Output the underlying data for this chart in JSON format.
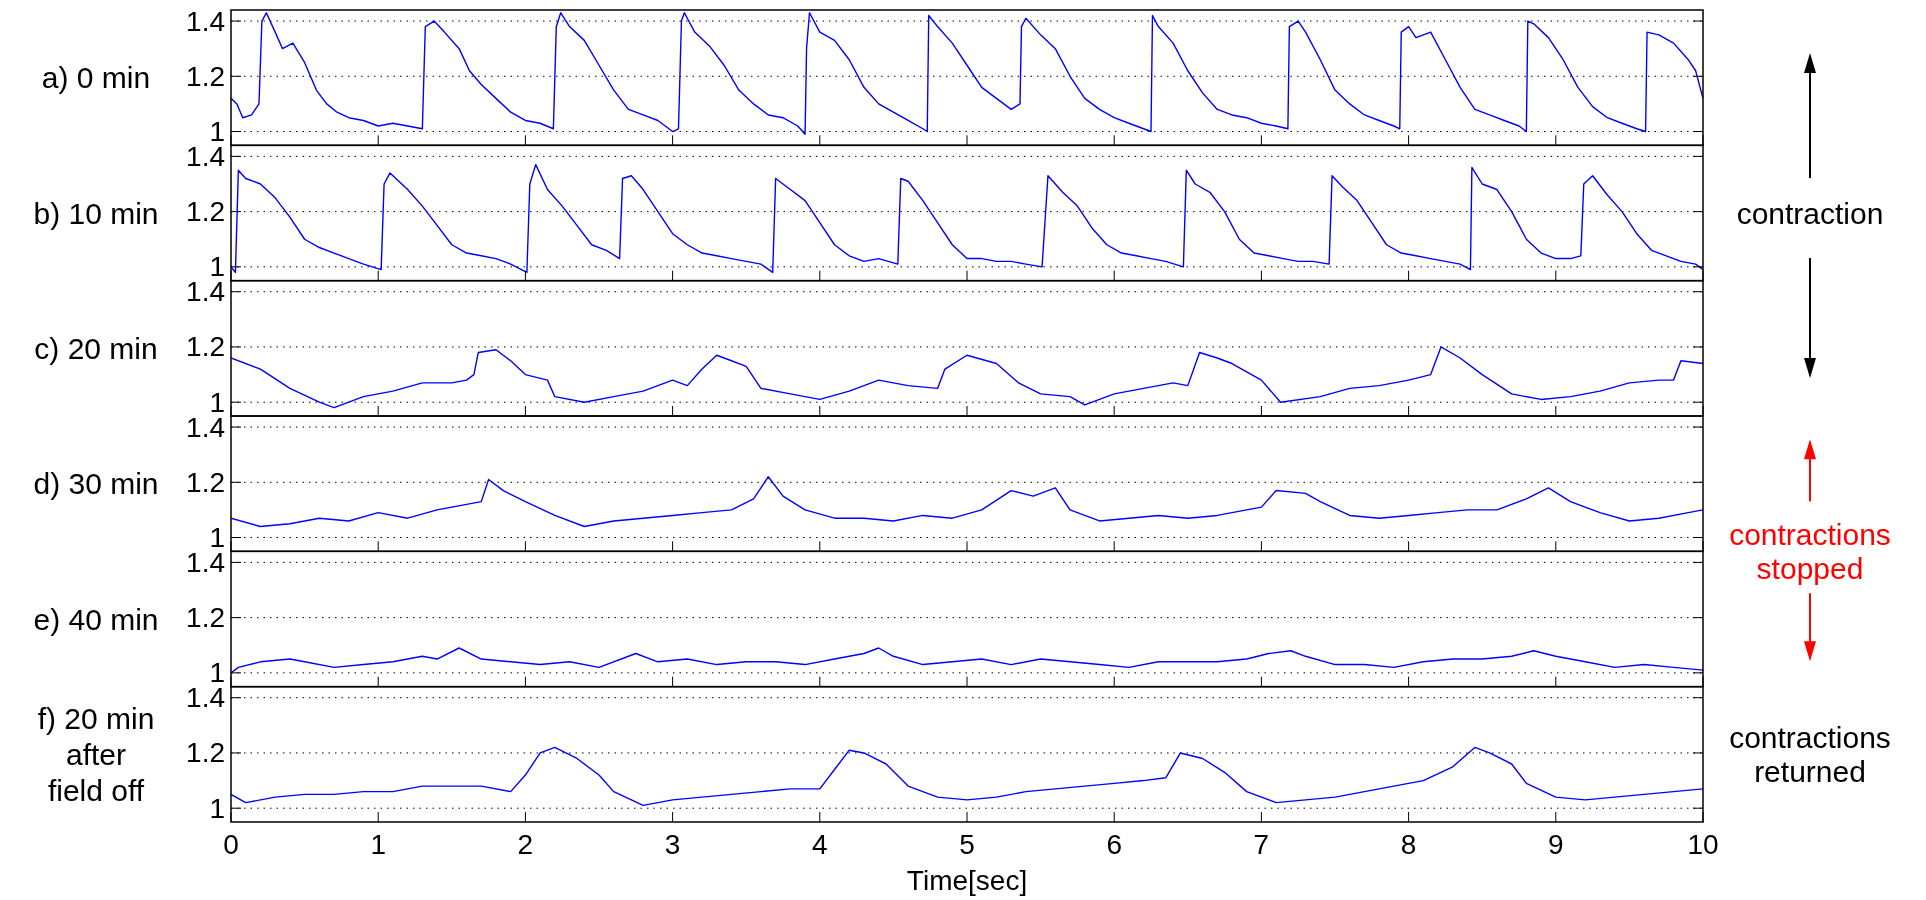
{
  "chart_data": [
    {
      "type": "line",
      "ylabel": "a) 0 min",
      "xlim": [
        0,
        10
      ],
      "xticks": [
        0,
        1,
        2,
        3,
        4,
        5,
        6,
        7,
        8,
        9,
        10
      ],
      "ylim": [
        0.95,
        1.44
      ],
      "yticks": [
        1,
        1.2,
        1.4
      ],
      "grid": "y",
      "tick_labels": "y",
      "x": [
        0,
        0.04,
        0.08,
        0.14,
        0.19,
        0.21,
        0.24,
        0.3,
        0.35,
        0.42,
        0.5,
        0.58,
        0.65,
        0.72,
        0.8,
        0.9,
        1.0,
        1.1,
        1.2,
        1.3,
        1.32,
        1.38,
        1.45,
        1.55,
        1.62,
        1.7,
        1.8,
        1.9,
        2.0,
        2.1,
        2.19,
        2.21,
        2.24,
        2.3,
        2.4,
        2.5,
        2.6,
        2.7,
        2.8,
        2.9,
        3.0,
        3.04,
        3.06,
        3.08,
        3.15,
        3.25,
        3.35,
        3.45,
        3.55,
        3.65,
        3.75,
        3.85,
        3.9,
        3.91,
        3.93,
        4.0,
        4.1,
        4.2,
        4.3,
        4.4,
        4.5,
        4.6,
        4.7,
        4.73,
        4.74,
        4.8,
        4.9,
        5.0,
        5.1,
        5.2,
        5.3,
        5.36,
        5.37,
        5.4,
        5.5,
        5.6,
        5.7,
        5.8,
        5.9,
        6.0,
        6.1,
        6.2,
        6.25,
        6.26,
        6.3,
        6.4,
        6.5,
        6.6,
        6.7,
        6.8,
        6.9,
        7.0,
        7.1,
        7.18,
        7.19,
        7.25,
        7.3,
        7.4,
        7.5,
        7.6,
        7.7,
        7.8,
        7.9,
        7.94,
        7.95,
        8.0,
        8.05,
        8.15,
        8.25,
        8.35,
        8.45,
        8.55,
        8.65,
        8.75,
        8.8,
        8.81,
        8.85,
        8.95,
        9.05,
        9.15,
        9.25,
        9.35,
        9.45,
        9.55,
        9.61,
        9.62,
        9.7,
        9.8,
        9.9,
        9.95,
        10
      ],
      "series": [
        {
          "color": "#0000ff",
          "values": [
            1.12,
            1.1,
            1.05,
            1.06,
            1.1,
            1.4,
            1.43,
            1.36,
            1.3,
            1.32,
            1.25,
            1.15,
            1.1,
            1.07,
            1.05,
            1.04,
            1.02,
            1.03,
            1.02,
            1.01,
            1.38,
            1.4,
            1.36,
            1.3,
            1.22,
            1.17,
            1.12,
            1.07,
            1.04,
            1.03,
            1.01,
            1.38,
            1.43,
            1.38,
            1.33,
            1.24,
            1.15,
            1.08,
            1.06,
            1.04,
            1.0,
            1.01,
            1.4,
            1.43,
            1.36,
            1.31,
            1.24,
            1.15,
            1.1,
            1.06,
            1.05,
            1.02,
            0.99,
            1.3,
            1.43,
            1.36,
            1.33,
            1.26,
            1.16,
            1.1,
            1.07,
            1.04,
            1.01,
            1.0,
            1.42,
            1.38,
            1.32,
            1.24,
            1.16,
            1.12,
            1.08,
            1.1,
            1.38,
            1.41,
            1.35,
            1.3,
            1.2,
            1.12,
            1.08,
            1.05,
            1.03,
            1.01,
            1.0,
            1.42,
            1.38,
            1.32,
            1.22,
            1.14,
            1.08,
            1.06,
            1.05,
            1.03,
            1.02,
            1.01,
            1.38,
            1.4,
            1.36,
            1.26,
            1.15,
            1.1,
            1.06,
            1.04,
            1.02,
            1.01,
            1.36,
            1.38,
            1.34,
            1.36,
            1.26,
            1.16,
            1.08,
            1.06,
            1.04,
            1.02,
            1.0,
            1.4,
            1.39,
            1.34,
            1.26,
            1.16,
            1.09,
            1.05,
            1.03,
            1.01,
            1.0,
            1.36,
            1.35,
            1.32,
            1.26,
            1.22,
            1.12
          ]
        }
      ]
    },
    {
      "type": "line",
      "ylabel": "b) 10 min",
      "xlim": [
        0,
        10
      ],
      "xticks": [
        0,
        1,
        2,
        3,
        4,
        5,
        6,
        7,
        8,
        9,
        10
      ],
      "ylim": [
        0.95,
        1.44
      ],
      "yticks": [
        1,
        1.2,
        1.4
      ],
      "grid": "y",
      "tick_labels": "y",
      "annotations": [
        "contraction"
      ],
      "x": [
        0,
        0.03,
        0.05,
        0.1,
        0.2,
        0.3,
        0.4,
        0.5,
        0.6,
        0.7,
        0.8,
        0.9,
        1.02,
        1.04,
        1.08,
        1.2,
        1.3,
        1.4,
        1.5,
        1.6,
        1.7,
        1.8,
        1.9,
        2.01,
        2.03,
        2.07,
        2.15,
        2.25,
        2.35,
        2.45,
        2.55,
        2.64,
        2.66,
        2.72,
        2.8,
        2.9,
        3.0,
        3.1,
        3.2,
        3.3,
        3.4,
        3.5,
        3.6,
        3.68,
        3.7,
        3.8,
        3.9,
        4.0,
        4.1,
        4.2,
        4.3,
        4.4,
        4.53,
        4.55,
        4.6,
        4.7,
        4.8,
        4.9,
        5.0,
        5.1,
        5.2,
        5.3,
        5.4,
        5.51,
        5.55,
        5.65,
        5.75,
        5.85,
        5.95,
        6.05,
        6.15,
        6.25,
        6.35,
        6.47,
        6.49,
        6.55,
        6.65,
        6.75,
        6.85,
        6.95,
        7.05,
        7.15,
        7.25,
        7.35,
        7.46,
        7.48,
        7.55,
        7.65,
        7.75,
        7.85,
        7.95,
        8.05,
        8.15,
        8.25,
        8.35,
        8.42,
        8.43,
        8.5,
        8.6,
        8.7,
        8.8,
        8.9,
        9.0,
        9.1,
        9.17,
        9.19,
        9.25,
        9.35,
        9.45,
        9.55,
        9.65,
        9.75,
        9.85,
        9.95,
        10
      ],
      "series": [
        {
          "color": "#0000ff",
          "values": [
            1.0,
            0.98,
            1.35,
            1.32,
            1.3,
            1.25,
            1.18,
            1.1,
            1.07,
            1.05,
            1.03,
            1.01,
            0.99,
            1.3,
            1.34,
            1.28,
            1.22,
            1.15,
            1.08,
            1.05,
            1.04,
            1.03,
            1.01,
            0.98,
            1.3,
            1.37,
            1.28,
            1.22,
            1.15,
            1.08,
            1.06,
            1.03,
            1.32,
            1.33,
            1.28,
            1.2,
            1.12,
            1.08,
            1.05,
            1.04,
            1.03,
            1.02,
            1.01,
            0.98,
            1.32,
            1.28,
            1.24,
            1.16,
            1.08,
            1.04,
            1.02,
            1.03,
            1.01,
            1.32,
            1.31,
            1.24,
            1.16,
            1.08,
            1.03,
            1.03,
            1.02,
            1.02,
            1.01,
            1.0,
            1.33,
            1.27,
            1.22,
            1.14,
            1.08,
            1.05,
            1.04,
            1.03,
            1.02,
            1.0,
            1.35,
            1.3,
            1.27,
            1.2,
            1.1,
            1.05,
            1.04,
            1.03,
            1.02,
            1.02,
            1.01,
            1.33,
            1.29,
            1.24,
            1.16,
            1.08,
            1.05,
            1.04,
            1.03,
            1.02,
            1.01,
            0.99,
            1.36,
            1.3,
            1.28,
            1.2,
            1.1,
            1.05,
            1.03,
            1.03,
            1.04,
            1.3,
            1.33,
            1.26,
            1.2,
            1.12,
            1.06,
            1.04,
            1.02,
            1.01,
            0.99
          ]
        }
      ]
    },
    {
      "type": "line",
      "ylabel": "c) 20 min",
      "xlim": [
        0,
        10
      ],
      "xticks": [
        0,
        1,
        2,
        3,
        4,
        5,
        6,
        7,
        8,
        9,
        10
      ],
      "ylim": [
        0.95,
        1.44
      ],
      "yticks": [
        1,
        1.2,
        1.4
      ],
      "grid": "y",
      "tick_labels": "y",
      "x": [
        0,
        0.2,
        0.4,
        0.6,
        0.7,
        0.9,
        1.1,
        1.3,
        1.5,
        1.6,
        1.65,
        1.68,
        1.8,
        1.9,
        2.0,
        2.15,
        2.2,
        2.4,
        2.6,
        2.8,
        3.0,
        3.1,
        3.2,
        3.3,
        3.4,
        3.5,
        3.6,
        3.8,
        4.0,
        4.2,
        4.4,
        4.6,
        4.8,
        4.85,
        5.0,
        5.2,
        5.35,
        5.5,
        5.7,
        5.8,
        6.0,
        6.2,
        6.4,
        6.5,
        6.58,
        6.7,
        6.8,
        7.0,
        7.13,
        7.4,
        7.6,
        7.8,
        8.0,
        8.15,
        8.22,
        8.35,
        8.5,
        8.7,
        8.9,
        9.1,
        9.3,
        9.5,
        9.7,
        9.8,
        9.85,
        10
      ],
      "series": [
        {
          "color": "#0000ff",
          "values": [
            1.16,
            1.12,
            1.05,
            1.0,
            0.98,
            1.02,
            1.04,
            1.07,
            1.07,
            1.08,
            1.1,
            1.18,
            1.19,
            1.15,
            1.1,
            1.08,
            1.02,
            1.0,
            1.02,
            1.04,
            1.08,
            1.06,
            1.12,
            1.17,
            1.15,
            1.13,
            1.05,
            1.03,
            1.01,
            1.04,
            1.08,
            1.06,
            1.05,
            1.12,
            1.17,
            1.14,
            1.07,
            1.03,
            1.02,
            0.99,
            1.03,
            1.05,
            1.07,
            1.06,
            1.18,
            1.16,
            1.14,
            1.08,
            1.0,
            1.02,
            1.05,
            1.06,
            1.08,
            1.1,
            1.2,
            1.16,
            1.1,
            1.03,
            1.01,
            1.02,
            1.04,
            1.07,
            1.08,
            1.08,
            1.15,
            1.14
          ]
        }
      ]
    },
    {
      "type": "line",
      "ylabel": "d) 30 min",
      "xlim": [
        0,
        10
      ],
      "xticks": [
        0,
        1,
        2,
        3,
        4,
        5,
        6,
        7,
        8,
        9,
        10
      ],
      "ylim": [
        0.95,
        1.44
      ],
      "yticks": [
        1,
        1.2,
        1.4
      ],
      "grid": "y",
      "tick_labels": "y",
      "annotations": [
        "contractions stopped"
      ],
      "x": [
        0,
        0.2,
        0.4,
        0.6,
        0.8,
        1.0,
        1.2,
        1.4,
        1.6,
        1.7,
        1.75,
        1.85,
        2.0,
        2.2,
        2.4,
        2.6,
        2.8,
        3.0,
        3.2,
        3.4,
        3.55,
        3.65,
        3.75,
        3.9,
        4.1,
        4.3,
        4.5,
        4.7,
        4.9,
        5.1,
        5.3,
        5.45,
        5.6,
        5.7,
        5.9,
        6.1,
        6.3,
        6.5,
        6.7,
        6.9,
        7.0,
        7.1,
        7.3,
        7.4,
        7.6,
        7.8,
        8.0,
        8.2,
        8.4,
        8.6,
        8.8,
        8.95,
        9.1,
        9.3,
        9.5,
        9.7,
        9.9,
        10
      ],
      "series": [
        {
          "color": "#0000ff",
          "values": [
            1.07,
            1.04,
            1.05,
            1.07,
            1.06,
            1.09,
            1.07,
            1.1,
            1.12,
            1.13,
            1.21,
            1.17,
            1.13,
            1.08,
            1.04,
            1.06,
            1.07,
            1.08,
            1.09,
            1.1,
            1.14,
            1.22,
            1.15,
            1.1,
            1.07,
            1.07,
            1.06,
            1.08,
            1.07,
            1.1,
            1.17,
            1.15,
            1.18,
            1.1,
            1.06,
            1.07,
            1.08,
            1.07,
            1.08,
            1.1,
            1.11,
            1.17,
            1.16,
            1.13,
            1.08,
            1.07,
            1.08,
            1.09,
            1.1,
            1.1,
            1.14,
            1.18,
            1.13,
            1.09,
            1.06,
            1.07,
            1.09,
            1.1
          ]
        }
      ]
    },
    {
      "type": "line",
      "ylabel": "e) 40 min",
      "xlim": [
        0,
        10
      ],
      "xticks": [
        0,
        1,
        2,
        3,
        4,
        5,
        6,
        7,
        8,
        9,
        10
      ],
      "ylim": [
        0.95,
        1.44
      ],
      "yticks": [
        1,
        1.2,
        1.4
      ],
      "grid": "y",
      "tick_labels": "y",
      "x": [
        0,
        0.05,
        0.2,
        0.4,
        0.5,
        0.7,
        0.9,
        1.1,
        1.3,
        1.4,
        1.55,
        1.7,
        1.9,
        2.1,
        2.3,
        2.5,
        2.75,
        2.9,
        3.1,
        3.3,
        3.5,
        3.7,
        3.9,
        4.1,
        4.3,
        4.4,
        4.5,
        4.7,
        4.9,
        5.1,
        5.3,
        5.5,
        5.7,
        5.9,
        6.1,
        6.3,
        6.5,
        6.7,
        6.9,
        7.05,
        7.2,
        7.3,
        7.5,
        7.7,
        7.9,
        8.1,
        8.3,
        8.5,
        8.7,
        8.85,
        9.0,
        9.2,
        9.4,
        9.6,
        9.8,
        10
      ],
      "series": [
        {
          "color": "#0000ff",
          "values": [
            1.0,
            1.02,
            1.04,
            1.05,
            1.04,
            1.02,
            1.03,
            1.04,
            1.06,
            1.05,
            1.09,
            1.05,
            1.04,
            1.03,
            1.04,
            1.02,
            1.07,
            1.04,
            1.05,
            1.03,
            1.04,
            1.04,
            1.03,
            1.05,
            1.07,
            1.09,
            1.06,
            1.03,
            1.04,
            1.05,
            1.03,
            1.05,
            1.04,
            1.03,
            1.02,
            1.04,
            1.04,
            1.04,
            1.05,
            1.07,
            1.08,
            1.06,
            1.03,
            1.03,
            1.02,
            1.04,
            1.05,
            1.05,
            1.06,
            1.08,
            1.06,
            1.04,
            1.02,
            1.03,
            1.02,
            1.01
          ]
        }
      ]
    },
    {
      "type": "line",
      "ylabel": "f) 20 min after field off",
      "xlabel": "Time[sec]",
      "xlim": [
        0,
        10
      ],
      "xticks": [
        0,
        1,
        2,
        3,
        4,
        5,
        6,
        7,
        8,
        9,
        10
      ],
      "ylim": [
        0.95,
        1.44
      ],
      "yticks": [
        1,
        1.2,
        1.4
      ],
      "grid": "y",
      "annotations": [
        "contractions returned"
      ],
      "x": [
        0,
        0.1,
        0.3,
        0.5,
        0.7,
        0.9,
        1.1,
        1.3,
        1.5,
        1.7,
        1.9,
        2.0,
        2.1,
        2.2,
        2.35,
        2.5,
        2.6,
        2.8,
        3.0,
        3.2,
        3.4,
        3.6,
        3.8,
        4.0,
        4.1,
        4.2,
        4.3,
        4.45,
        4.6,
        4.8,
        5.0,
        5.2,
        5.4,
        5.6,
        5.8,
        6.0,
        6.2,
        6.35,
        6.45,
        6.6,
        6.75,
        6.9,
        7.1,
        7.3,
        7.5,
        7.7,
        7.9,
        8.1,
        8.3,
        8.45,
        8.55,
        8.7,
        8.8,
        9.0,
        9.2,
        9.4,
        9.6,
        9.8,
        10
      ],
      "series": [
        {
          "color": "#0000ff",
          "values": [
            1.05,
            1.02,
            1.04,
            1.05,
            1.05,
            1.06,
            1.06,
            1.08,
            1.08,
            1.08,
            1.06,
            1.12,
            1.2,
            1.22,
            1.18,
            1.12,
            1.06,
            1.01,
            1.03,
            1.04,
            1.05,
            1.06,
            1.07,
            1.07,
            1.14,
            1.21,
            1.2,
            1.16,
            1.08,
            1.04,
            1.03,
            1.04,
            1.06,
            1.07,
            1.08,
            1.09,
            1.1,
            1.11,
            1.2,
            1.18,
            1.13,
            1.06,
            1.02,
            1.03,
            1.04,
            1.06,
            1.08,
            1.1,
            1.15,
            1.22,
            1.2,
            1.16,
            1.09,
            1.04,
            1.03,
            1.04,
            1.05,
            1.06,
            1.07
          ]
        }
      ]
    }
  ]
}
